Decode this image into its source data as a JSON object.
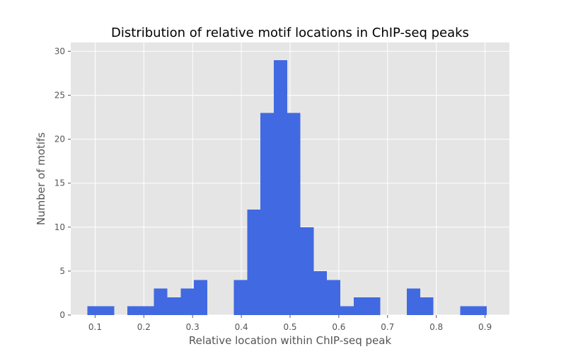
{
  "chart_data": {
    "type": "bar",
    "title": "Distribution of relative motif locations in ChIP-seq peaks",
    "xlabel": "Relative location within ChIP-seq peak",
    "ylabel": "Number of motifs",
    "xlim": [
      0.05,
      0.95
    ],
    "ylim": [
      0,
      31
    ],
    "xticks": [
      "0.1",
      "0.2",
      "0.3",
      "0.4",
      "0.5",
      "0.6",
      "0.7",
      "0.8",
      "0.9"
    ],
    "yticks": [
      "0",
      "5",
      "10",
      "15",
      "20",
      "25",
      "30"
    ],
    "grid": true,
    "bin_width": 0.0273,
    "bins": [
      {
        "x0": 0.0844,
        "value": 1
      },
      {
        "x0": 0.1117,
        "value": 1
      },
      {
        "x0": 0.139,
        "value": 0
      },
      {
        "x0": 0.1663,
        "value": 1
      },
      {
        "x0": 0.1936,
        "value": 1
      },
      {
        "x0": 0.2209,
        "value": 3
      },
      {
        "x0": 0.2482,
        "value": 2
      },
      {
        "x0": 0.2755,
        "value": 3
      },
      {
        "x0": 0.3028,
        "value": 4
      },
      {
        "x0": 0.3301,
        "value": 0
      },
      {
        "x0": 0.3574,
        "value": 0
      },
      {
        "x0": 0.3847,
        "value": 4
      },
      {
        "x0": 0.412,
        "value": 12
      },
      {
        "x0": 0.4393,
        "value": 23
      },
      {
        "x0": 0.4666,
        "value": 29
      },
      {
        "x0": 0.4939,
        "value": 23
      },
      {
        "x0": 0.5212,
        "value": 10
      },
      {
        "x0": 0.5485,
        "value": 5
      },
      {
        "x0": 0.5758,
        "value": 4
      },
      {
        "x0": 0.6031,
        "value": 1
      },
      {
        "x0": 0.6304,
        "value": 2
      },
      {
        "x0": 0.6577,
        "value": 2
      },
      {
        "x0": 0.685,
        "value": 0
      },
      {
        "x0": 0.7123,
        "value": 0
      },
      {
        "x0": 0.7396,
        "value": 3
      },
      {
        "x0": 0.7669,
        "value": 2
      },
      {
        "x0": 0.7942,
        "value": 0
      },
      {
        "x0": 0.8215,
        "value": 0
      },
      {
        "x0": 0.8488,
        "value": 1
      },
      {
        "x0": 0.8761,
        "value": 1
      }
    ],
    "colors": {
      "bar": "#4169e1",
      "background": "#e5e5e5",
      "grid": "#ffffff"
    }
  }
}
